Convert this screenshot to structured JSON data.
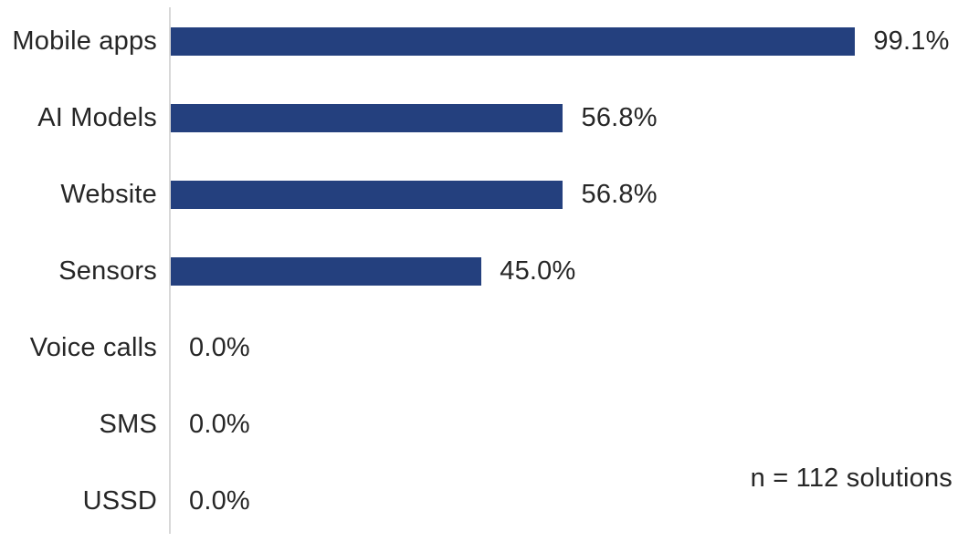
{
  "chart_data": {
    "type": "bar",
    "orientation": "horizontal",
    "title": "",
    "xlabel": "",
    "ylabel": "",
    "categories": [
      "Mobile apps",
      "AI Models",
      "Website",
      "Sensors",
      "Voice calls",
      "SMS",
      "USSD"
    ],
    "values": [
      99.1,
      56.8,
      56.8,
      45.0,
      0.0,
      0.0,
      0.0
    ],
    "value_labels": [
      "99.1%",
      "56.8%",
      "56.8%",
      "45.0%",
      "0.0%",
      "0.0%",
      "0.0%"
    ],
    "xlim": [
      0,
      114
    ],
    "grid": false,
    "legend": false,
    "annotation": "n = 112 solutions",
    "colors": {
      "bar": "#24407E",
      "axis": "#D8D8D8",
      "text": "#262626",
      "background": "#FFFFFF"
    }
  }
}
